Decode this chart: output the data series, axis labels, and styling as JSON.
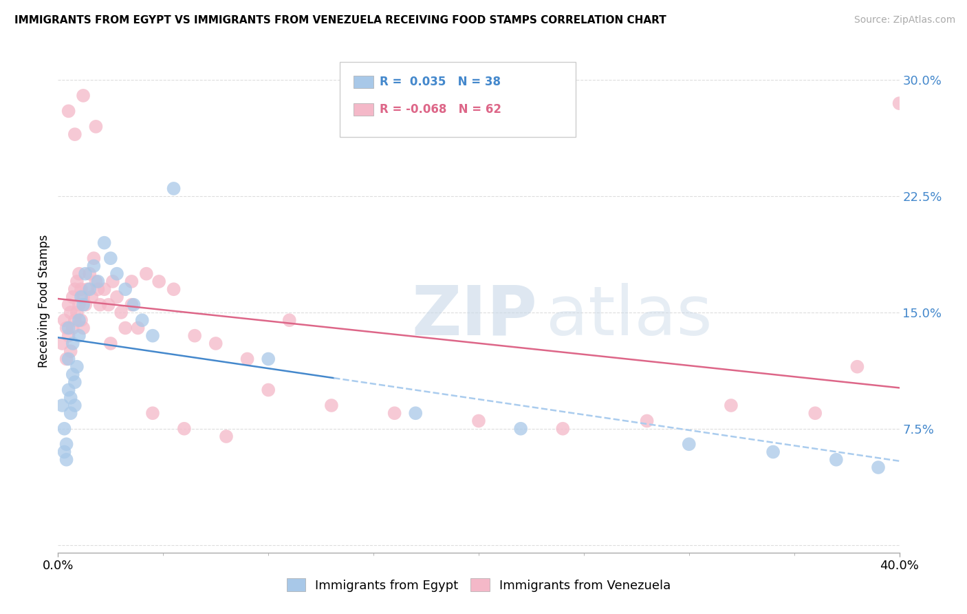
{
  "title": "IMMIGRANTS FROM EGYPT VS IMMIGRANTS FROM VENEZUELA RECEIVING FOOD STAMPS CORRELATION CHART",
  "source": "Source: ZipAtlas.com",
  "ylabel": "Receiving Food Stamps",
  "yticks": [
    0.0,
    0.075,
    0.15,
    0.225,
    0.3
  ],
  "ytick_labels": [
    "",
    "7.5%",
    "15.0%",
    "22.5%",
    "30.0%"
  ],
  "xlim": [
    0.0,
    0.4
  ],
  "ylim": [
    -0.005,
    0.32
  ],
  "egypt_R": 0.035,
  "egypt_N": 38,
  "venezuela_R": -0.068,
  "venezuela_N": 62,
  "egypt_color": "#a8c8e8",
  "venezuela_color": "#f4b8c8",
  "egypt_line_color": "#4488cc",
  "venezuela_line_color": "#dd6688",
  "dashed_line_color": "#aaccee",
  "watermark_zip": "ZIP",
  "watermark_atlas": "atlas",
  "legend_label_egypt": "Immigrants from Egypt",
  "legend_label_venezuela": "Immigrants from Venezuela",
  "egypt_x": [
    0.002,
    0.003,
    0.003,
    0.004,
    0.004,
    0.005,
    0.005,
    0.005,
    0.006,
    0.006,
    0.007,
    0.007,
    0.008,
    0.008,
    0.009,
    0.01,
    0.01,
    0.011,
    0.012,
    0.013,
    0.015,
    0.017,
    0.019,
    0.022,
    0.025,
    0.028,
    0.032,
    0.036,
    0.04,
    0.045,
    0.055,
    0.1,
    0.17,
    0.22,
    0.3,
    0.34,
    0.37,
    0.39
  ],
  "egypt_y": [
    0.09,
    0.075,
    0.06,
    0.055,
    0.065,
    0.1,
    0.12,
    0.14,
    0.095,
    0.085,
    0.11,
    0.13,
    0.105,
    0.09,
    0.115,
    0.145,
    0.135,
    0.16,
    0.155,
    0.175,
    0.165,
    0.18,
    0.17,
    0.195,
    0.185,
    0.175,
    0.165,
    0.155,
    0.145,
    0.135,
    0.23,
    0.12,
    0.085,
    0.075,
    0.065,
    0.06,
    0.055,
    0.05
  ],
  "venezuela_x": [
    0.002,
    0.003,
    0.004,
    0.004,
    0.005,
    0.005,
    0.006,
    0.006,
    0.007,
    0.007,
    0.008,
    0.008,
    0.009,
    0.009,
    0.01,
    0.01,
    0.011,
    0.011,
    0.012,
    0.012,
    0.013,
    0.014,
    0.015,
    0.016,
    0.017,
    0.018,
    0.019,
    0.02,
    0.022,
    0.024,
    0.026,
    0.028,
    0.03,
    0.032,
    0.035,
    0.038,
    0.042,
    0.048,
    0.055,
    0.065,
    0.075,
    0.09,
    0.11,
    0.13,
    0.16,
    0.2,
    0.24,
    0.28,
    0.32,
    0.36,
    0.005,
    0.008,
    0.012,
    0.018,
    0.025,
    0.035,
    0.045,
    0.06,
    0.08,
    0.1,
    0.38,
    0.4
  ],
  "venezuela_y": [
    0.13,
    0.145,
    0.14,
    0.12,
    0.155,
    0.135,
    0.15,
    0.125,
    0.16,
    0.14,
    0.165,
    0.145,
    0.17,
    0.15,
    0.175,
    0.155,
    0.165,
    0.145,
    0.16,
    0.14,
    0.155,
    0.165,
    0.175,
    0.16,
    0.185,
    0.17,
    0.165,
    0.155,
    0.165,
    0.155,
    0.17,
    0.16,
    0.15,
    0.14,
    0.155,
    0.14,
    0.175,
    0.17,
    0.165,
    0.135,
    0.13,
    0.12,
    0.145,
    0.09,
    0.085,
    0.08,
    0.075,
    0.08,
    0.09,
    0.085,
    0.28,
    0.265,
    0.29,
    0.27,
    0.13,
    0.17,
    0.085,
    0.075,
    0.07,
    0.1,
    0.115,
    0.285
  ]
}
